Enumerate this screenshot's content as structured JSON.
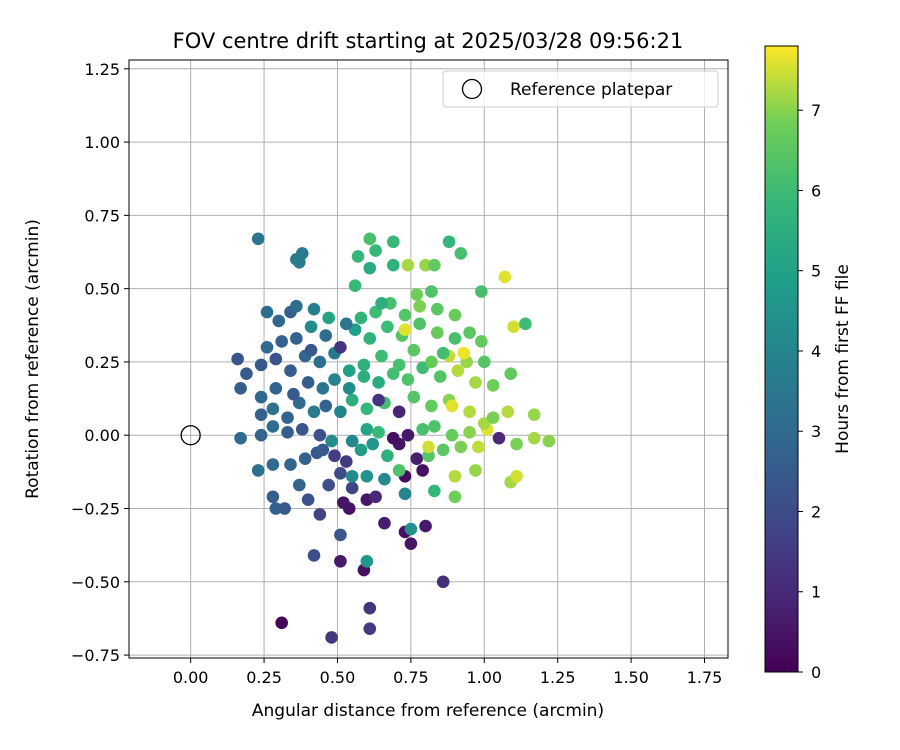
{
  "chart_data": {
    "type": "scatter",
    "title": "FOV centre drift starting at 2025/03/28 09:56:21",
    "xlabel": "Angular distance from reference (arcmin)",
    "ylabel": "Rotation from reference (arcmin)",
    "xlim": [
      -0.21,
      1.83
    ],
    "ylim": [
      -0.76,
      1.28
    ],
    "xticks": [
      0.0,
      0.25,
      0.5,
      0.75,
      1.0,
      1.25,
      1.5,
      1.75
    ],
    "xtick_labels": [
      "0.00",
      "0.25",
      "0.50",
      "0.75",
      "1.00",
      "1.25",
      "1.50",
      "1.75"
    ],
    "yticks": [
      -0.75,
      -0.5,
      -0.25,
      0.0,
      0.25,
      0.5,
      0.75,
      1.0,
      1.25
    ],
    "ytick_labels": [
      "−0.75",
      "−0.50",
      "−0.25",
      "0.00",
      "0.25",
      "0.50",
      "0.75",
      "1.00",
      "1.25"
    ],
    "grid": true,
    "legend": {
      "position": "top-right",
      "label": "Reference platepar",
      "marker": "open-circle"
    },
    "reference_point": {
      "x": 0.0,
      "y": 0.0
    },
    "colorbar": {
      "label": "Hours from first FF file",
      "colormap": "viridis",
      "range": [
        0,
        7.8
      ],
      "ticks": [
        0,
        1,
        2,
        3,
        4,
        5,
        6,
        7
      ],
      "tick_labels": [
        "0",
        "1",
        "2",
        "3",
        "4",
        "5",
        "6",
        "7"
      ]
    },
    "points": [
      [
        0.31,
        -0.64,
        0.05
      ],
      [
        0.48,
        -0.69,
        1.4
      ],
      [
        0.61,
        -0.66,
        1.5
      ],
      [
        0.61,
        -0.59,
        1.3
      ],
      [
        0.59,
        -0.46,
        0.4
      ],
      [
        0.6,
        -0.43,
        4.6
      ],
      [
        0.51,
        -0.43,
        0.6
      ],
      [
        0.42,
        -0.41,
        2.1
      ],
      [
        0.51,
        -0.34,
        2.3
      ],
      [
        0.86,
        -0.5,
        1.2
      ],
      [
        0.75,
        -0.37,
        0.5
      ],
      [
        0.73,
        -0.33,
        0.4
      ],
      [
        0.75,
        -0.32,
        4.4
      ],
      [
        0.8,
        -0.31,
        0.6
      ],
      [
        0.66,
        -0.3,
        0.7
      ],
      [
        0.54,
        -0.25,
        0.4
      ],
      [
        0.6,
        -0.22,
        0.5
      ],
      [
        0.63,
        -0.21,
        1.0
      ],
      [
        0.73,
        -0.2,
        4.0
      ],
      [
        0.9,
        -0.21,
        6.8
      ],
      [
        0.83,
        -0.19,
        5.8
      ],
      [
        0.28,
        -0.21,
        2.6
      ],
      [
        0.29,
        -0.25,
        2.7
      ],
      [
        0.32,
        -0.25,
        2.5
      ],
      [
        0.37,
        -0.17,
        2.8
      ],
      [
        0.4,
        -0.22,
        2.2
      ],
      [
        0.44,
        -0.27,
        1.8
      ],
      [
        0.47,
        -0.17,
        2.1
      ],
      [
        0.51,
        -0.13,
        2.0
      ],
      [
        0.55,
        -0.18,
        1.8
      ],
      [
        0.6,
        -0.14,
        4.5
      ],
      [
        0.66,
        -0.15,
        4.2
      ],
      [
        0.73,
        -0.14,
        0.3
      ],
      [
        0.79,
        -0.12,
        0.4
      ],
      [
        0.9,
        -0.14,
        7.3
      ],
      [
        0.97,
        -0.12,
        7.1
      ],
      [
        1.09,
        -0.16,
        7.2
      ],
      [
        1.11,
        -0.14,
        7.5
      ],
      [
        0.23,
        -0.12,
        3.2
      ],
      [
        0.28,
        -0.1,
        3.0
      ],
      [
        0.34,
        -0.1,
        2.9
      ],
      [
        0.39,
        -0.08,
        2.7
      ],
      [
        0.43,
        -0.06,
        2.4
      ],
      [
        0.49,
        -0.07,
        1.6
      ],
      [
        0.53,
        -0.09,
        1.5
      ],
      [
        0.58,
        -0.05,
        4.8
      ],
      [
        0.62,
        -0.03,
        4.6
      ],
      [
        0.67,
        -0.07,
        5.6
      ],
      [
        0.71,
        -0.03,
        0.5
      ],
      [
        0.77,
        -0.08,
        0.7
      ],
      [
        0.81,
        -0.07,
        6.4
      ],
      [
        0.86,
        -0.05,
        6.5
      ],
      [
        0.92,
        -0.04,
        6.9
      ],
      [
        0.98,
        -0.04,
        7.4
      ],
      [
        0.17,
        -0.01,
        3.0
      ],
      [
        0.24,
        0.0,
        2.8
      ],
      [
        0.28,
        0.03,
        3.1
      ],
      [
        0.33,
        0.01,
        2.6
      ],
      [
        0.38,
        0.02,
        2.3
      ],
      [
        0.44,
        0.0,
        2.2
      ],
      [
        0.48,
        -0.02,
        4.3
      ],
      [
        0.55,
        -0.02,
        4.1
      ],
      [
        0.6,
        0.02,
        5.2
      ],
      [
        0.64,
        0.01,
        5.9
      ],
      [
        0.69,
        -0.01,
        0.3
      ],
      [
        0.74,
        0.0,
        0.6
      ],
      [
        0.79,
        0.02,
        6.2
      ],
      [
        0.83,
        0.03,
        6.3
      ],
      [
        0.89,
        0.0,
        6.7
      ],
      [
        0.95,
        0.01,
        7.0
      ],
      [
        1.01,
        0.02,
        7.6
      ],
      [
        1.05,
        -0.01,
        1.0
      ],
      [
        1.11,
        -0.03,
        6.9
      ],
      [
        1.17,
        -0.01,
        7.2
      ],
      [
        1.22,
        -0.02,
        7.0
      ],
      [
        0.24,
        0.07,
        2.7
      ],
      [
        0.28,
        0.09,
        3.3
      ],
      [
        0.33,
        0.06,
        2.9
      ],
      [
        0.37,
        0.11,
        3.0
      ],
      [
        0.42,
        0.08,
        3.6
      ],
      [
        0.46,
        0.1,
        2.8
      ],
      [
        0.51,
        0.08,
        4.0
      ],
      [
        0.55,
        0.12,
        5.5
      ],
      [
        0.6,
        0.09,
        5.8
      ],
      [
        0.66,
        0.11,
        6.1
      ],
      [
        0.71,
        0.08,
        0.9
      ],
      [
        0.76,
        0.13,
        6.4
      ],
      [
        0.82,
        0.1,
        6.6
      ],
      [
        0.88,
        0.12,
        7.0
      ],
      [
        0.95,
        0.08,
        7.3
      ],
      [
        1.0,
        0.04,
        7.2
      ],
      [
        1.03,
        0.06,
        6.9
      ],
      [
        1.08,
        0.08,
        7.3
      ],
      [
        1.17,
        0.07,
        7.1
      ],
      [
        0.17,
        0.16,
        2.6
      ],
      [
        0.24,
        0.13,
        2.9
      ],
      [
        0.29,
        0.16,
        2.8
      ],
      [
        0.35,
        0.14,
        2.5
      ],
      [
        0.4,
        0.18,
        2.6
      ],
      [
        0.45,
        0.16,
        3.4
      ],
      [
        0.49,
        0.19,
        3.9
      ],
      [
        0.54,
        0.16,
        4.2
      ],
      [
        0.59,
        0.2,
        5.5
      ],
      [
        0.64,
        0.18,
        5.3
      ],
      [
        0.69,
        0.21,
        6.1
      ],
      [
        0.74,
        0.19,
        6.3
      ],
      [
        0.79,
        0.23,
        6.0
      ],
      [
        0.85,
        0.2,
        6.4
      ],
      [
        0.91,
        0.22,
        7.3
      ],
      [
        0.97,
        0.18,
        7.2
      ],
      [
        1.03,
        0.17,
        6.8
      ],
      [
        1.09,
        0.21,
        6.6
      ],
      [
        0.16,
        0.26,
        2.3
      ],
      [
        0.19,
        0.21,
        2.5
      ],
      [
        0.24,
        0.24,
        2.4
      ],
      [
        0.29,
        0.26,
        2.2
      ],
      [
        0.34,
        0.22,
        2.5
      ],
      [
        0.39,
        0.27,
        2.9
      ],
      [
        0.44,
        0.25,
        3.2
      ],
      [
        0.49,
        0.28,
        3.6
      ],
      [
        0.54,
        0.22,
        5.0
      ],
      [
        0.59,
        0.24,
        5.6
      ],
      [
        0.65,
        0.27,
        6.0
      ],
      [
        0.71,
        0.24,
        6.2
      ],
      [
        0.76,
        0.29,
        6.5
      ],
      [
        0.82,
        0.25,
        6.7
      ],
      [
        0.88,
        0.27,
        7.4
      ],
      [
        0.94,
        0.25,
        7.1
      ],
      [
        1.0,
        0.25,
        6.4
      ],
      [
        0.26,
        0.3,
        3.0
      ],
      [
        0.31,
        0.32,
        2.8
      ],
      [
        0.36,
        0.33,
        2.7
      ],
      [
        0.41,
        0.29,
        2.4
      ],
      [
        0.46,
        0.34,
        3.1
      ],
      [
        0.51,
        0.3,
        1.4
      ],
      [
        0.56,
        0.36,
        4.9
      ],
      [
        0.61,
        0.33,
        5.7
      ],
      [
        0.67,
        0.37,
        6.0
      ],
      [
        0.72,
        0.34,
        6.4
      ],
      [
        0.78,
        0.38,
        6.3
      ],
      [
        0.84,
        0.35,
        6.7
      ],
      [
        0.9,
        0.33,
        6.2
      ],
      [
        0.95,
        0.35,
        6.5
      ],
      [
        0.99,
        0.32,
        6.6
      ],
      [
        1.1,
        0.37,
        7.5
      ],
      [
        1.14,
        0.38,
        6.0
      ],
      [
        0.26,
        0.42,
        3.2
      ],
      [
        0.3,
        0.39,
        2.9
      ],
      [
        0.34,
        0.42,
        2.7
      ],
      [
        0.36,
        0.44,
        3.1
      ],
      [
        0.42,
        0.43,
        3.8
      ],
      [
        0.47,
        0.4,
        5.1
      ],
      [
        0.53,
        0.38,
        3.4
      ],
      [
        0.58,
        0.4,
        5.7
      ],
      [
        0.63,
        0.42,
        6.0
      ],
      [
        0.68,
        0.45,
        6.2
      ],
      [
        0.73,
        0.41,
        6.4
      ],
      [
        0.78,
        0.44,
        6.9
      ],
      [
        0.84,
        0.43,
        6.5
      ],
      [
        0.9,
        0.41,
        6.7
      ],
      [
        0.65,
        0.45,
        5.5
      ],
      [
        0.77,
        0.48,
        6.8
      ],
      [
        0.82,
        0.49,
        6.3
      ],
      [
        0.99,
        0.49,
        6.2
      ],
      [
        1.07,
        0.54,
        7.6
      ],
      [
        0.56,
        0.51,
        5.9
      ],
      [
        0.61,
        0.57,
        5.4
      ],
      [
        0.57,
        0.61,
        5.8
      ],
      [
        0.63,
        0.63,
        5.9
      ],
      [
        0.69,
        0.58,
        5.6
      ],
      [
        0.74,
        0.58,
        7.2
      ],
      [
        0.8,
        0.58,
        7.1
      ],
      [
        0.83,
        0.58,
        6.6
      ],
      [
        0.88,
        0.66,
        5.8
      ],
      [
        0.92,
        0.62,
        6.2
      ],
      [
        0.69,
        0.66,
        5.9
      ],
      [
        0.61,
        0.67,
        6.2
      ],
      [
        0.36,
        0.6,
        3.5
      ],
      [
        0.37,
        0.59,
        3.8
      ],
      [
        0.38,
        0.62,
        3.6
      ],
      [
        0.23,
        0.67,
        3.4
      ],
      [
        0.41,
        0.37,
        4.2
      ],
      [
        0.73,
        0.36,
        7.6
      ],
      [
        0.86,
        0.28,
        6.1
      ],
      [
        0.93,
        0.28,
        7.7
      ],
      [
        0.89,
        0.1,
        7.6
      ],
      [
        0.81,
        -0.04,
        7.5
      ],
      [
        0.64,
        0.12,
        1.3
      ],
      [
        0.55,
        -0.14,
        4.2
      ],
      [
        0.52,
        -0.23,
        0.5
      ],
      [
        0.71,
        -0.12,
        6.3
      ],
      [
        0.45,
        -0.05,
        2.5
      ]
    ]
  }
}
